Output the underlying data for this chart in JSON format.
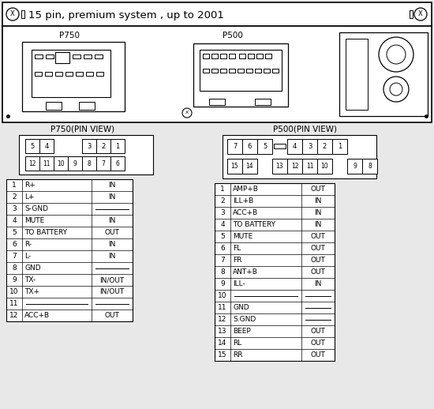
{
  "title": "15 pin, premium system , up to 2001",
  "bg_color": "#e8e8e8",
  "p750_label": "P750",
  "p500_label": "P500",
  "p750_pin_view": "P750(PIN VIEW)",
  "p500_pin_view": "P500(PIN VIEW)",
  "p750_rows": [
    [
      "1",
      "R+",
      "IN"
    ],
    [
      "2",
      "L+",
      "IN"
    ],
    [
      "3",
      "S-GND",
      "___"
    ],
    [
      "4",
      "MUTE",
      "IN"
    ],
    [
      "5",
      "TO BATTERY",
      "OUT"
    ],
    [
      "6",
      "R-",
      "IN"
    ],
    [
      "7",
      "L-",
      "IN"
    ],
    [
      "8",
      "GND",
      "___"
    ],
    [
      "9",
      "TX-",
      "IN/OUT"
    ],
    [
      "10",
      "TX+",
      "IN/OUT"
    ],
    [
      "11",
      "___",
      "___"
    ],
    [
      "12",
      "ACC+B",
      "OUT"
    ]
  ],
  "p500_rows": [
    [
      "1",
      "AMP+B",
      "OUT"
    ],
    [
      "2",
      "ILL+B",
      "IN"
    ],
    [
      "3",
      "ACC+B",
      "IN"
    ],
    [
      "4",
      "TO BATTERY",
      "IN"
    ],
    [
      "5",
      "MUTE",
      "OUT"
    ],
    [
      "6",
      "FL",
      "OUT"
    ],
    [
      "7",
      "FR",
      "OUT"
    ],
    [
      "8",
      "ANT+B",
      "OUT"
    ],
    [
      "9",
      "ILL-",
      "IN"
    ],
    [
      "10",
      "___",
      "___"
    ],
    [
      "11",
      "GND",
      "___"
    ],
    [
      "12",
      "S.GND",
      "___"
    ],
    [
      "13",
      "BEEP",
      "OUT"
    ],
    [
      "14",
      "RL",
      "OUT"
    ],
    [
      "15",
      "RR",
      "OUT"
    ]
  ]
}
